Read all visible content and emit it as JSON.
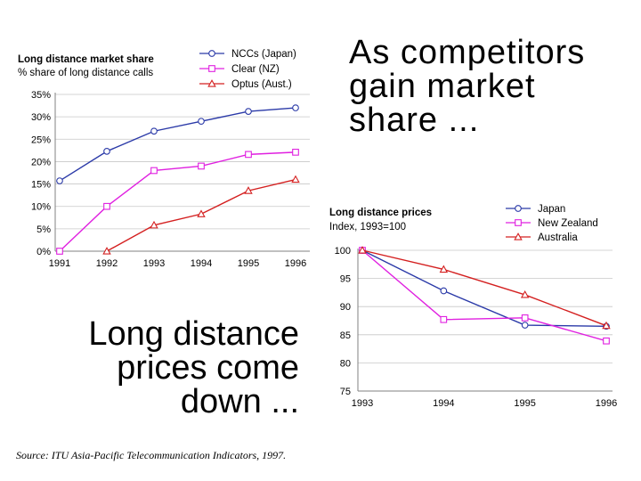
{
  "headlines": {
    "share": [
      "As competitors",
      "gain market",
      "share ..."
    ],
    "prices": [
      "Long distance",
      "prices come",
      "down ..."
    ]
  },
  "source": "Source: ITU Asia-Pacific Telecommunication Indicators, 1997.",
  "colors": {
    "blue": "#2b3aa8",
    "magenta": "#e020e0",
    "red": "#d42020",
    "grid": "#c8c8c8"
  },
  "chart_data": [
    {
      "type": "line",
      "title": "Long distance market share",
      "subtitle": "% share of long distance calls",
      "x": [
        1991,
        1992,
        1993,
        1994,
        1995,
        1996
      ],
      "xtick_labels": [
        "1991",
        "1992",
        "1993",
        "1994",
        "1995",
        "1996"
      ],
      "ylim": [
        0,
        35
      ],
      "yticks": [
        0,
        5,
        10,
        15,
        20,
        25,
        30,
        35
      ],
      "ytick_labels": [
        "0%",
        "5%",
        "10%",
        "15%",
        "20%",
        "25%",
        "30%",
        "35%"
      ],
      "grid": "horizontal",
      "legend_position": "top-right",
      "series": [
        {
          "name": "NCCs (Japan)",
          "marker": "circle",
          "color": "#2b3aa8",
          "values": [
            15.7,
            22.3,
            26.8,
            29.0,
            31.2,
            32.0
          ]
        },
        {
          "name": "Clear (NZ)",
          "marker": "square",
          "color": "#e020e0",
          "values": [
            0,
            10.0,
            18.0,
            19.0,
            21.6,
            22.1
          ]
        },
        {
          "name": "Optus (Aust.)",
          "marker": "triangle",
          "color": "#d42020",
          "values": [
            null,
            0,
            5.8,
            8.3,
            13.5,
            16.0
          ]
        }
      ]
    },
    {
      "type": "line",
      "title": "Long distance prices",
      "subtitle": "Index, 1993=100",
      "x": [
        1993,
        1994,
        1995,
        1996
      ],
      "xtick_labels": [
        "1993",
        "1994",
        "1995",
        "1996"
      ],
      "ylim": [
        75,
        100
      ],
      "yticks": [
        75,
        80,
        85,
        90,
        95,
        100
      ],
      "ytick_labels": [
        "75",
        "80",
        "85",
        "90",
        "95",
        "100"
      ],
      "grid": "horizontal",
      "legend_position": "top-right",
      "series": [
        {
          "name": "Japan",
          "marker": "circle",
          "color": "#2b3aa8",
          "values": [
            100,
            92.8,
            86.7,
            86.5
          ]
        },
        {
          "name": "New Zealand",
          "marker": "square",
          "color": "#e020e0",
          "values": [
            100,
            87.7,
            88.0,
            83.9
          ]
        },
        {
          "name": "Australia",
          "marker": "triangle",
          "color": "#d42020",
          "values": [
            100,
            96.6,
            92.1,
            86.6
          ]
        }
      ]
    }
  ]
}
